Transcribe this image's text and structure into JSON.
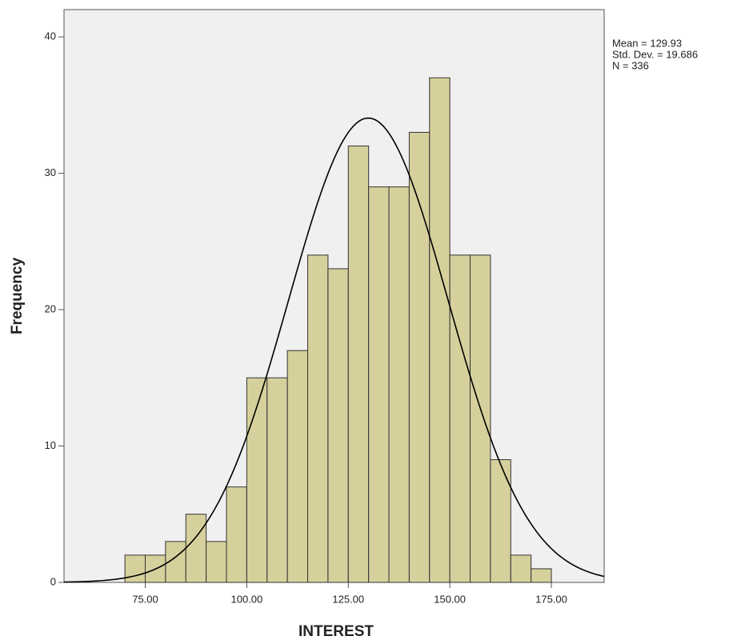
{
  "chart_data": {
    "type": "histogram",
    "x_label": "INTEREST",
    "y_label": "Frequency",
    "bins": [
      70,
      75,
      80,
      85,
      90,
      95,
      100,
      105,
      110,
      115,
      120,
      125,
      130,
      135,
      140,
      145,
      150,
      155,
      160,
      165,
      170,
      175
    ],
    "counts": [
      2,
      2,
      3,
      5,
      3,
      7,
      15,
      15,
      17,
      24,
      23,
      32,
      29,
      29,
      33,
      37,
      24,
      24,
      9,
      2,
      1
    ],
    "color": "#d6d09c",
    "curve_color": "#000000",
    "background": "#f0f0f0",
    "xlim": [
      55,
      188
    ],
    "ylim": [
      0,
      42
    ],
    "xticks": [
      {
        "value": 75,
        "label": "75.00"
      },
      {
        "value": 100,
        "label": "100.00"
      },
      {
        "value": 125,
        "label": "125.00"
      },
      {
        "value": 150,
        "label": "150.00"
      },
      {
        "value": 175,
        "label": "175.00"
      }
    ],
    "yticks": [
      0,
      10,
      20,
      30,
      40
    ],
    "stats": [
      {
        "label": "Mean = 129.93",
        "value": 129.93
      },
      {
        "label": "Std. Dev. = 19.686",
        "value": 19.686
      },
      {
        "label": "N = 336",
        "value": 336
      }
    ]
  }
}
